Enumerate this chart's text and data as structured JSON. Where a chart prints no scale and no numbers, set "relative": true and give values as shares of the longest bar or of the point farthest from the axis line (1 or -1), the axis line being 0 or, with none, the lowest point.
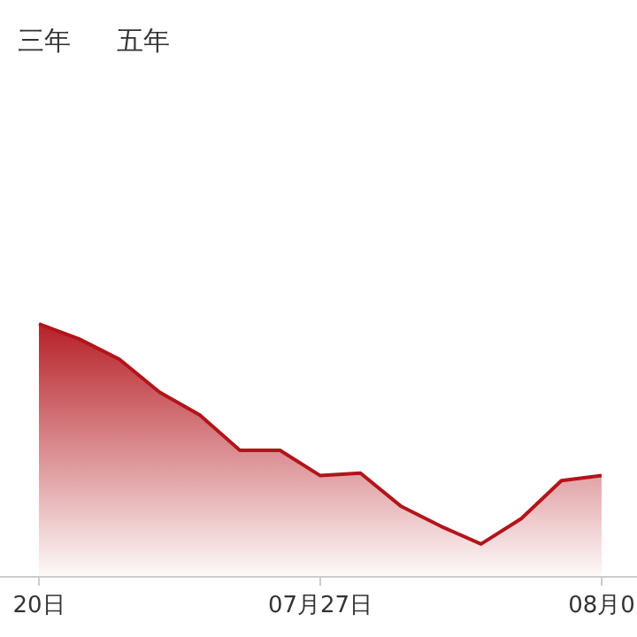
{
  "chart_data": {
    "type": "area",
    "relative": true,
    "annotations": [
      "三年",
      "五年"
    ],
    "categories": [
      "20日",
      null,
      null,
      null,
      null,
      null,
      null,
      "07月27日",
      null,
      null,
      null,
      null,
      null,
      null,
      "08月0"
    ],
    "series": [
      {
        "color": "#b3141c",
        "values": [
          1,
          0.94,
          0.86,
          0.73,
          0.64,
          0.5,
          0.5,
          0.4,
          0.41,
          0.28,
          0.2,
          0.13,
          0.23,
          0.38,
          0.4
        ]
      }
    ]
  }
}
